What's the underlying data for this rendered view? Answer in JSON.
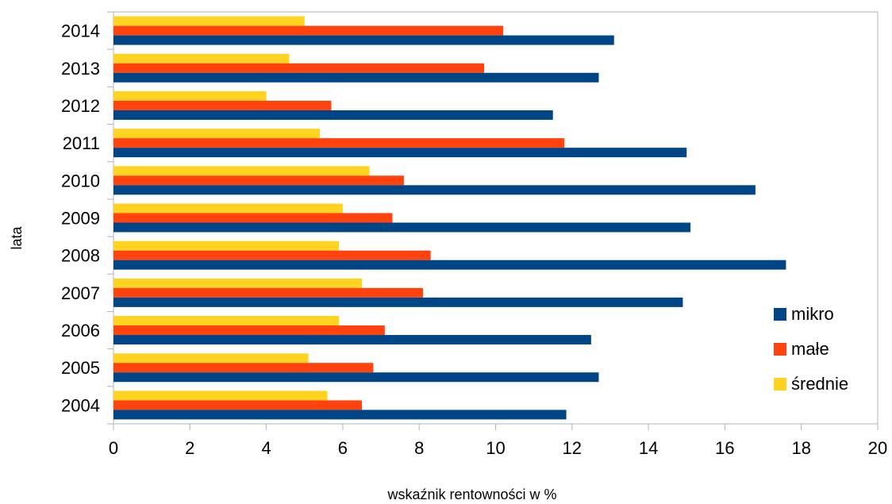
{
  "chart_data": {
    "type": "bar",
    "orientation": "horizontal",
    "categories": [
      "2004",
      "2005",
      "2006",
      "2007",
      "2008",
      "2009",
      "2010",
      "2011",
      "2012",
      "2013",
      "2014"
    ],
    "series": [
      {
        "name": "mikro",
        "color": "#004586",
        "values": [
          11.85,
          12.7,
          12.5,
          14.9,
          17.6,
          15.1,
          16.8,
          15.0,
          11.5,
          12.7,
          13.1
        ]
      },
      {
        "name": "małe",
        "color": "#ff420e",
        "values": [
          6.5,
          6.8,
          7.1,
          8.1,
          8.3,
          7.3,
          7.6,
          11.8,
          5.7,
          9.7,
          10.2
        ]
      },
      {
        "name": "średnie",
        "color": "#ffd320",
        "values": [
          5.6,
          5.1,
          5.9,
          6.5,
          5.9,
          6.0,
          6.7,
          5.4,
          4.0,
          4.6,
          5.0
        ]
      }
    ],
    "xlabel": "wskaźnik rentowności w %",
    "ylabel": "lata",
    "xlim": [
      0,
      20
    ],
    "xticks": [
      "0",
      "2",
      "4",
      "6",
      "8",
      "10",
      "12",
      "14",
      "16",
      "18",
      "20"
    ],
    "grid": false,
    "legend_position": "right"
  }
}
